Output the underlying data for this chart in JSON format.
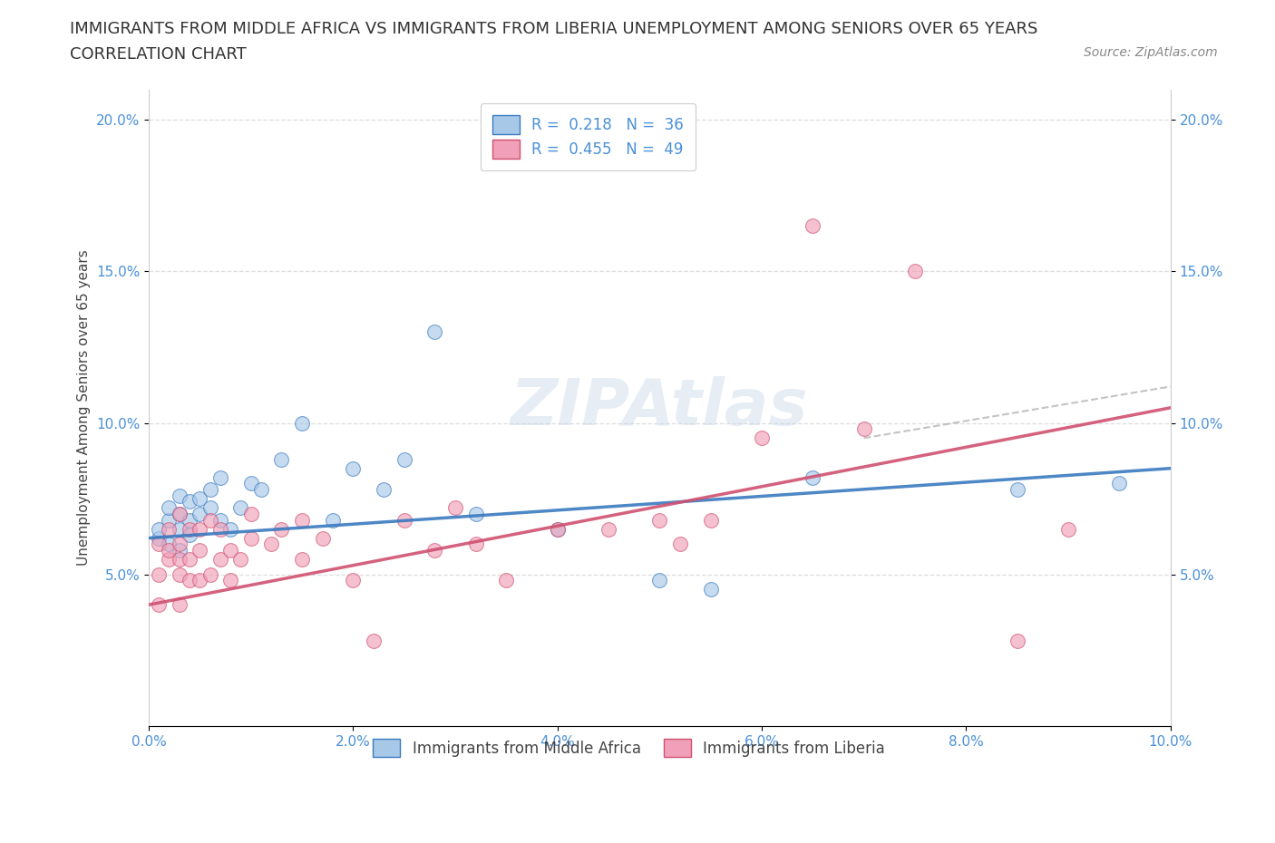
{
  "title_line1": "IMMIGRANTS FROM MIDDLE AFRICA VS IMMIGRANTS FROM LIBERIA UNEMPLOYMENT AMONG SENIORS OVER 65 YEARS",
  "title_line2": "CORRELATION CHART",
  "source_text": "Source: ZipAtlas.com",
  "ylabel": "Unemployment Among Seniors over 65 years",
  "xmin": 0.0,
  "xmax": 0.1,
  "ymin": 0.0,
  "ymax": 0.21,
  "yticks": [
    0.05,
    0.1,
    0.15,
    0.2
  ],
  "ytick_labels": [
    "5.0%",
    "10.0%",
    "15.0%",
    "20.0%"
  ],
  "xticks": [
    0.0,
    0.02,
    0.04,
    0.06,
    0.08,
    0.1
  ],
  "xtick_labels": [
    "0.0%",
    "2.0%",
    "4.0%",
    "6.0%",
    "8.0%",
    "10.0%"
  ],
  "legend_label1": "Immigrants from Middle Africa",
  "legend_label2": "Immigrants from Liberia",
  "R1": "0.218",
  "N1": "36",
  "R2": "0.455",
  "N2": "49",
  "color1": "#a8c8e8",
  "color2": "#f0a0b8",
  "line_color1": "#3a7abf",
  "line_color2": "#d05070",
  "scatter_alpha": 0.65,
  "background_color": "#ffffff",
  "grid_color": "#dddddd",
  "title_fontsize": 13,
  "axis_label_fontsize": 11,
  "tick_fontsize": 11,
  "source_fontsize": 10,
  "legend_fontsize": 12,
  "scatter1_x": [
    0.001,
    0.001,
    0.002,
    0.002,
    0.002,
    0.003,
    0.003,
    0.003,
    0.003,
    0.004,
    0.004,
    0.004,
    0.005,
    0.005,
    0.006,
    0.006,
    0.007,
    0.007,
    0.008,
    0.009,
    0.01,
    0.011,
    0.013,
    0.015,
    0.018,
    0.02,
    0.023,
    0.025,
    0.028,
    0.032,
    0.04,
    0.05,
    0.055,
    0.065,
    0.085,
    0.095
  ],
  "scatter1_y": [
    0.062,
    0.065,
    0.06,
    0.068,
    0.072,
    0.058,
    0.065,
    0.07,
    0.076,
    0.063,
    0.068,
    0.074,
    0.07,
    0.075,
    0.072,
    0.078,
    0.068,
    0.082,
    0.065,
    0.072,
    0.08,
    0.078,
    0.088,
    0.1,
    0.068,
    0.085,
    0.078,
    0.088,
    0.13,
    0.07,
    0.065,
    0.048,
    0.045,
    0.082,
    0.078,
    0.08
  ],
  "scatter2_x": [
    0.001,
    0.001,
    0.001,
    0.002,
    0.002,
    0.002,
    0.003,
    0.003,
    0.003,
    0.003,
    0.003,
    0.004,
    0.004,
    0.004,
    0.005,
    0.005,
    0.005,
    0.006,
    0.006,
    0.007,
    0.007,
    0.008,
    0.008,
    0.009,
    0.01,
    0.01,
    0.012,
    0.013,
    0.015,
    0.015,
    0.017,
    0.02,
    0.022,
    0.025,
    0.028,
    0.03,
    0.032,
    0.035,
    0.04,
    0.045,
    0.05,
    0.052,
    0.055,
    0.06,
    0.065,
    0.07,
    0.075,
    0.085,
    0.09
  ],
  "scatter2_y": [
    0.04,
    0.05,
    0.06,
    0.055,
    0.058,
    0.065,
    0.04,
    0.05,
    0.055,
    0.06,
    0.07,
    0.048,
    0.055,
    0.065,
    0.048,
    0.058,
    0.065,
    0.05,
    0.068,
    0.055,
    0.065,
    0.048,
    0.058,
    0.055,
    0.062,
    0.07,
    0.06,
    0.065,
    0.055,
    0.068,
    0.062,
    0.048,
    0.028,
    0.068,
    0.058,
    0.072,
    0.06,
    0.048,
    0.065,
    0.065,
    0.068,
    0.06,
    0.068,
    0.095,
    0.165,
    0.098,
    0.15,
    0.028,
    0.065
  ],
  "trend1_x0": 0.0,
  "trend1_y0": 0.062,
  "trend1_x1": 0.1,
  "trend1_y1": 0.085,
  "trend2_x0": 0.0,
  "trend2_y0": 0.04,
  "trend2_x1": 0.1,
  "trend2_y1": 0.105
}
